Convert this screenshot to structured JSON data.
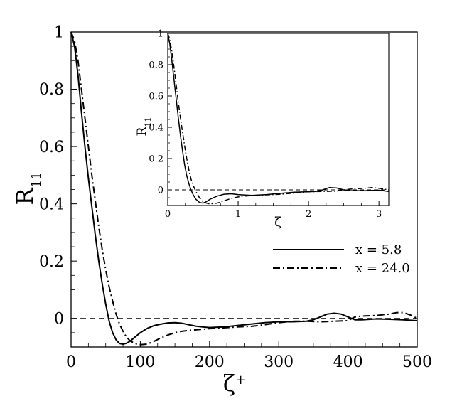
{
  "chart_data": [
    {
      "type": "line",
      "id": "main",
      "xlabel_base": "ζ",
      "xlabel_sup": "+",
      "ylabel_base": "R",
      "ylabel_sub": "11",
      "xlim": [
        0,
        500
      ],
      "ylim": [
        -0.1,
        1.0
      ],
      "xticks": [
        0,
        100,
        200,
        300,
        400,
        500
      ],
      "xtick_labels": [
        "0",
        "100",
        "200",
        "300",
        "400",
        "500"
      ],
      "yticks": [
        0,
        0.2,
        0.4,
        0.6,
        0.8,
        1.0
      ],
      "ytick_labels": [
        "0",
        "0.2",
        "0.4",
        "0.6",
        "0.8",
        "1"
      ],
      "zero_line": true,
      "grid": false,
      "legend_position": "right-middle",
      "series": [
        {
          "name": "x = 5.8",
          "style": "solid",
          "x": [
            0,
            5,
            10,
            15,
            20,
            25,
            30,
            35,
            40,
            45,
            50,
            55,
            60,
            65,
            70,
            75,
            80,
            85,
            90,
            100,
            110,
            120,
            130,
            140,
            150,
            160,
            170,
            180,
            190,
            200,
            220,
            240,
            260,
            280,
            300,
            320,
            340,
            350,
            360,
            370,
            380,
            390,
            400,
            410,
            420,
            440,
            460,
            480,
            500
          ],
          "y": [
            1.0,
            0.95,
            0.85,
            0.72,
            0.6,
            0.49,
            0.39,
            0.29,
            0.2,
            0.12,
            0.05,
            -0.01,
            -0.05,
            -0.075,
            -0.088,
            -0.09,
            -0.087,
            -0.08,
            -0.07,
            -0.05,
            -0.035,
            -0.025,
            -0.02,
            -0.016,
            -0.015,
            -0.017,
            -0.022,
            -0.027,
            -0.03,
            -0.032,
            -0.03,
            -0.025,
            -0.02,
            -0.015,
            -0.012,
            -0.012,
            -0.01,
            -0.005,
            0.005,
            0.015,
            0.018,
            0.015,
            0.005,
            -0.005,
            -0.005,
            -0.002,
            -0.003,
            -0.005,
            -0.008
          ]
        },
        {
          "name": "x = 24.0",
          "style": "dashdot",
          "x": [
            0,
            5,
            10,
            15,
            20,
            25,
            30,
            35,
            40,
            45,
            50,
            55,
            60,
            65,
            70,
            75,
            80,
            85,
            90,
            95,
            100,
            110,
            120,
            130,
            140,
            150,
            160,
            170,
            180,
            190,
            200,
            220,
            240,
            260,
            280,
            300,
            320,
            340,
            360,
            380,
            400,
            410,
            420,
            440,
            460,
            470,
            480,
            490,
            500
          ],
          "y": [
            1.0,
            0.97,
            0.9,
            0.8,
            0.7,
            0.6,
            0.5,
            0.41,
            0.32,
            0.24,
            0.17,
            0.11,
            0.06,
            0.015,
            -0.02,
            -0.045,
            -0.065,
            -0.078,
            -0.085,
            -0.09,
            -0.092,
            -0.09,
            -0.08,
            -0.068,
            -0.058,
            -0.05,
            -0.045,
            -0.042,
            -0.04,
            -0.038,
            -0.036,
            -0.033,
            -0.03,
            -0.028,
            -0.022,
            -0.015,
            -0.01,
            -0.01,
            -0.012,
            -0.01,
            -0.008,
            0.005,
            0.008,
            0.01,
            0.015,
            0.02,
            0.02,
            0.012,
            0.0
          ]
        }
      ]
    },
    {
      "type": "line",
      "id": "inset",
      "xlabel_base": "ζ",
      "ylabel_base": "R",
      "ylabel_sub": "11",
      "xlim": [
        0,
        3.14
      ],
      "ylim": [
        -0.1,
        1.0
      ],
      "xticks": [
        0,
        1,
        2,
        3
      ],
      "xtick_labels": [
        "0",
        "1",
        "2",
        "3"
      ],
      "yticks": [
        0,
        0.2,
        0.4,
        0.6,
        0.8,
        1.0
      ],
      "ytick_labels": [
        "0",
        "0.2",
        "0.4",
        "0.6",
        "0.8",
        "1"
      ],
      "zero_line": true,
      "grid": false,
      "series": [
        {
          "style": "solid",
          "x": [
            0,
            0.03,
            0.06,
            0.09,
            0.12,
            0.15,
            0.18,
            0.21,
            0.24,
            0.27,
            0.3,
            0.33,
            0.36,
            0.4,
            0.45,
            0.5,
            0.55,
            0.6,
            0.7,
            0.8,
            0.9,
            1.0,
            1.1,
            1.2,
            1.4,
            1.6,
            1.8,
            2.0,
            2.1,
            2.2,
            2.3,
            2.4,
            2.5,
            2.6,
            2.8,
            3.0,
            3.14
          ],
          "y": [
            1.0,
            0.93,
            0.82,
            0.7,
            0.58,
            0.46,
            0.35,
            0.25,
            0.16,
            0.09,
            0.04,
            0.0,
            -0.03,
            -0.06,
            -0.08,
            -0.085,
            -0.075,
            -0.06,
            -0.04,
            -0.028,
            -0.025,
            -0.03,
            -0.033,
            -0.035,
            -0.03,
            -0.022,
            -0.015,
            -0.012,
            -0.01,
            0.0,
            0.015,
            0.012,
            0.0,
            -0.005,
            -0.005,
            -0.002,
            -0.01
          ]
        },
        {
          "style": "dashdot",
          "x": [
            0,
            0.03,
            0.06,
            0.09,
            0.12,
            0.15,
            0.18,
            0.21,
            0.24,
            0.27,
            0.3,
            0.33,
            0.36,
            0.4,
            0.45,
            0.5,
            0.55,
            0.6,
            0.7,
            0.8,
            0.9,
            1.0,
            1.1,
            1.2,
            1.4,
            1.6,
            1.8,
            2.0,
            2.2,
            2.4,
            2.5,
            2.6,
            2.8,
            2.9,
            3.0,
            3.14
          ],
          "y": [
            1.0,
            0.96,
            0.88,
            0.78,
            0.67,
            0.56,
            0.46,
            0.37,
            0.28,
            0.2,
            0.13,
            0.07,
            0.03,
            -0.01,
            -0.05,
            -0.075,
            -0.085,
            -0.09,
            -0.085,
            -0.07,
            -0.055,
            -0.045,
            -0.04,
            -0.036,
            -0.032,
            -0.028,
            -0.02,
            -0.012,
            -0.01,
            -0.008,
            0.0,
            0.005,
            0.01,
            0.015,
            0.01,
            0.0
          ]
        }
      ]
    }
  ]
}
